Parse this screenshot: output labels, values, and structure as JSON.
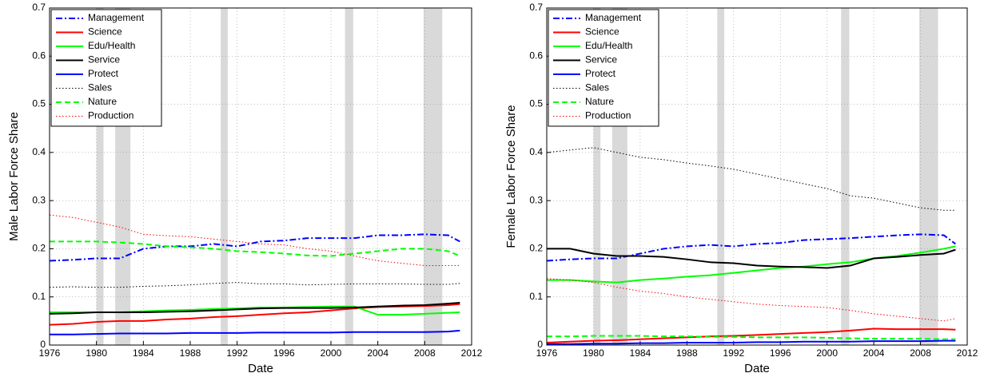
{
  "chart_data": [
    {
      "type": "line",
      "ylabel": "Male Labor Force Share",
      "xlabel": "Date",
      "x": [
        1976,
        1978,
        1980,
        1982,
        1984,
        1986,
        1988,
        1990,
        1992,
        1994,
        1996,
        1998,
        2000,
        2002,
        2004,
        2006,
        2008,
        2010,
        2011
      ],
      "xlim": [
        1976,
        2012
      ],
      "xticks": [
        1976,
        1980,
        1984,
        1988,
        1992,
        1996,
        2000,
        2004,
        2008,
        2012
      ],
      "ylim": [
        0,
        0.7
      ],
      "yticks": [
        0,
        0.1,
        0.2,
        0.3,
        0.4,
        0.5,
        0.6,
        0.7
      ],
      "grid": true,
      "legend": "upper left",
      "shaded_regions": [
        [
          1980.0,
          1980.6
        ],
        [
          1981.6,
          1982.9
        ],
        [
          1990.6,
          1991.2
        ],
        [
          2001.2,
          2001.9
        ],
        [
          2007.9,
          2009.5
        ]
      ],
      "series": [
        {
          "name": "Management",
          "color": "#0000ff",
          "style": "dashdot",
          "values": [
            0.175,
            0.177,
            0.18,
            0.18,
            0.2,
            0.205,
            0.205,
            0.21,
            0.205,
            0.215,
            0.217,
            0.222,
            0.222,
            0.222,
            0.228,
            0.228,
            0.23,
            0.228,
            0.215
          ]
        },
        {
          "name": "Science",
          "color": "#ff0000",
          "style": "solid",
          "values": [
            0.042,
            0.044,
            0.048,
            0.05,
            0.05,
            0.053,
            0.055,
            0.058,
            0.06,
            0.063,
            0.066,
            0.068,
            0.072,
            0.076,
            0.079,
            0.08,
            0.081,
            0.083,
            0.085
          ]
        },
        {
          "name": "Edu/Health",
          "color": "#00ff00",
          "style": "solid",
          "values": [
            0.068,
            0.068,
            0.068,
            0.068,
            0.07,
            0.072,
            0.073,
            0.075,
            0.076,
            0.078,
            0.078,
            0.079,
            0.08,
            0.08,
            0.063,
            0.063,
            0.065,
            0.067,
            0.068
          ]
        },
        {
          "name": "Service",
          "color": "#000000",
          "style": "solid",
          "values": [
            0.065,
            0.066,
            0.068,
            0.068,
            0.068,
            0.069,
            0.07,
            0.072,
            0.074,
            0.076,
            0.077,
            0.077,
            0.077,
            0.078,
            0.08,
            0.082,
            0.083,
            0.086,
            0.088
          ]
        },
        {
          "name": "Protect",
          "color": "#0000ff",
          "style": "solid",
          "values": [
            0.022,
            0.022,
            0.023,
            0.024,
            0.024,
            0.024,
            0.025,
            0.025,
            0.025,
            0.026,
            0.026,
            0.026,
            0.026,
            0.027,
            0.027,
            0.027,
            0.027,
            0.028,
            0.03
          ]
        },
        {
          "name": "Sales",
          "color": "#000000",
          "style": "dotted",
          "values": [
            0.12,
            0.121,
            0.12,
            0.12,
            0.122,
            0.123,
            0.125,
            0.128,
            0.13,
            0.127,
            0.127,
            0.125,
            0.126,
            0.127,
            0.127,
            0.127,
            0.126,
            0.126,
            0.128
          ]
        },
        {
          "name": "Nature",
          "color": "#00ff00",
          "style": "dashed",
          "values": [
            0.215,
            0.215,
            0.215,
            0.213,
            0.21,
            0.205,
            0.203,
            0.2,
            0.195,
            0.193,
            0.19,
            0.186,
            0.185,
            0.19,
            0.195,
            0.2,
            0.2,
            0.195,
            0.185
          ]
        },
        {
          "name": "Production",
          "color": "#ff0000",
          "style": "dotted",
          "values": [
            0.27,
            0.265,
            0.255,
            0.245,
            0.23,
            0.227,
            0.225,
            0.22,
            0.215,
            0.21,
            0.208,
            0.2,
            0.195,
            0.185,
            0.175,
            0.17,
            0.165,
            0.165,
            0.165
          ]
        }
      ]
    },
    {
      "type": "line",
      "ylabel": "Female Labor Force Share",
      "xlabel": "Date",
      "x": [
        1976,
        1978,
        1980,
        1982,
        1984,
        1986,
        1988,
        1990,
        1992,
        1994,
        1996,
        1998,
        2000,
        2002,
        2004,
        2006,
        2008,
        2010,
        2011
      ],
      "xlim": [
        1976,
        2012
      ],
      "xticks": [
        1976,
        1980,
        1984,
        1988,
        1992,
        1996,
        2000,
        2004,
        2008,
        2012
      ],
      "ylim": [
        0,
        0.7
      ],
      "yticks": [
        0,
        0.1,
        0.2,
        0.3,
        0.4,
        0.5,
        0.6,
        0.7
      ],
      "grid": true,
      "legend": "upper left",
      "shaded_regions": [
        [
          1980.0,
          1980.6
        ],
        [
          1981.6,
          1982.9
        ],
        [
          1990.6,
          1991.2
        ],
        [
          2001.2,
          2001.9
        ],
        [
          2007.9,
          2009.5
        ]
      ],
      "series": [
        {
          "name": "Management",
          "color": "#0000ff",
          "style": "dashdot",
          "values": [
            0.175,
            0.178,
            0.18,
            0.18,
            0.19,
            0.2,
            0.205,
            0.208,
            0.205,
            0.21,
            0.212,
            0.218,
            0.22,
            0.222,
            0.225,
            0.228,
            0.23,
            0.228,
            0.21
          ]
        },
        {
          "name": "Science",
          "color": "#ff0000",
          "style": "solid",
          "values": [
            0.005,
            0.007,
            0.009,
            0.01,
            0.012,
            0.014,
            0.016,
            0.018,
            0.019,
            0.021,
            0.023,
            0.025,
            0.027,
            0.03,
            0.034,
            0.033,
            0.033,
            0.033,
            0.032
          ]
        },
        {
          "name": "Edu/Health",
          "color": "#00ff00",
          "style": "solid",
          "values": [
            0.135,
            0.135,
            0.132,
            0.13,
            0.135,
            0.138,
            0.142,
            0.145,
            0.15,
            0.155,
            0.16,
            0.163,
            0.168,
            0.172,
            0.18,
            0.185,
            0.192,
            0.2,
            0.205
          ]
        },
        {
          "name": "Service",
          "color": "#000000",
          "style": "solid",
          "values": [
            0.2,
            0.2,
            0.19,
            0.185,
            0.185,
            0.183,
            0.178,
            0.172,
            0.17,
            0.165,
            0.163,
            0.162,
            0.16,
            0.165,
            0.18,
            0.183,
            0.187,
            0.19,
            0.198
          ]
        },
        {
          "name": "Protect",
          "color": "#0000ff",
          "style": "solid",
          "values": [
            0.002,
            0.002,
            0.003,
            0.003,
            0.004,
            0.004,
            0.005,
            0.005,
            0.005,
            0.006,
            0.006,
            0.007,
            0.007,
            0.007,
            0.008,
            0.008,
            0.008,
            0.009,
            0.009
          ]
        },
        {
          "name": "Sales",
          "color": "#000000",
          "style": "dotted",
          "values": [
            0.4,
            0.405,
            0.41,
            0.4,
            0.39,
            0.385,
            0.378,
            0.372,
            0.365,
            0.355,
            0.345,
            0.335,
            0.325,
            0.31,
            0.305,
            0.295,
            0.285,
            0.28,
            0.28
          ]
        },
        {
          "name": "Nature",
          "color": "#00ff00",
          "style": "dashed",
          "values": [
            0.018,
            0.018,
            0.019,
            0.019,
            0.019,
            0.018,
            0.018,
            0.017,
            0.017,
            0.016,
            0.016,
            0.016,
            0.015,
            0.014,
            0.013,
            0.013,
            0.013,
            0.012,
            0.012
          ]
        },
        {
          "name": "Production",
          "color": "#ff0000",
          "style": "dotted",
          "values": [
            0.138,
            0.135,
            0.13,
            0.12,
            0.112,
            0.107,
            0.1,
            0.095,
            0.09,
            0.085,
            0.082,
            0.08,
            0.078,
            0.072,
            0.065,
            0.06,
            0.055,
            0.05,
            0.055
          ]
        }
      ]
    }
  ]
}
